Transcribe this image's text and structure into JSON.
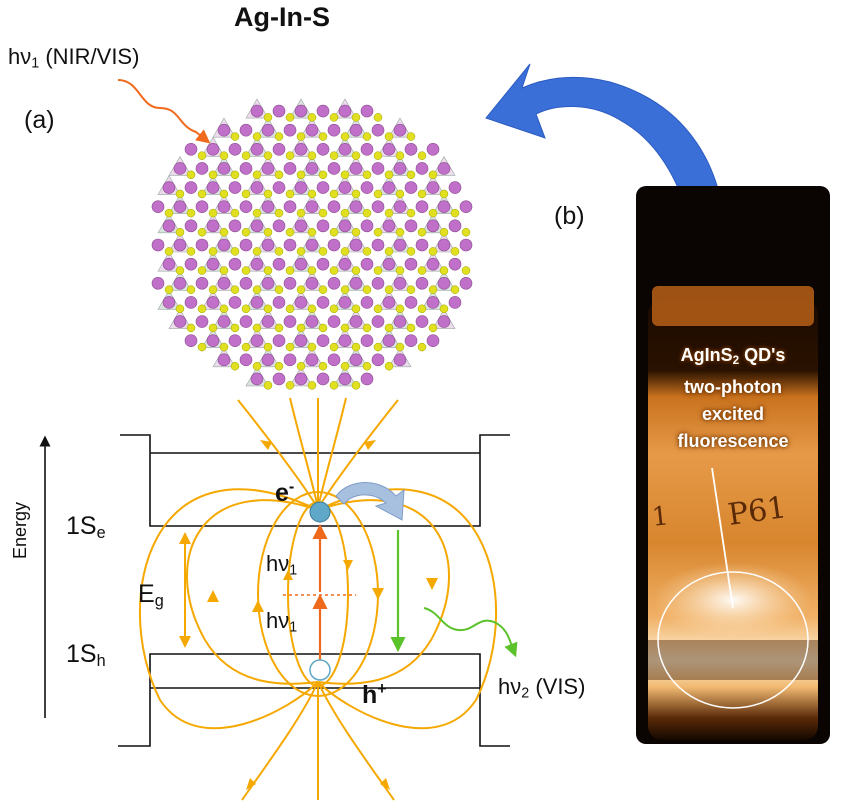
{
  "title": "Ag-In-S",
  "labels": {
    "photon_in_prefix": "hν",
    "photon_in_sub": "1",
    "photon_in_suffix": " (NIR/VIS)",
    "panel_a": "(a)",
    "panel_b": "(b)",
    "energy": "Energy",
    "level_e_main": "1S",
    "level_e_sub": "e",
    "level_h_main": "1S",
    "level_h_sub": "h",
    "gap_main": "E",
    "gap_sub": "g",
    "electron_main": "e",
    "electron_sup": "-",
    "hole_main": "h",
    "hole_sup": "+",
    "hv_prefix": "hν",
    "hv1_sub": "1",
    "hv2_sub": "1",
    "photon_out_prefix": "hν",
    "photon_out_sub": "2",
    "photon_out_suffix": " (VIS)"
  },
  "vial": {
    "line1_prefix": "AgInS",
    "line1_sub": "2",
    "line1_suffix": " QD's",
    "line2": "two-photon",
    "line3": "excited",
    "line4": "fluorescence",
    "label_left": "1",
    "label_right": "P61"
  },
  "colors": {
    "field_lines": "#f5a800",
    "excitation": "#f06a1e",
    "emission": "#5cc22a",
    "curved_arrow": "#3a6fd8",
    "indium": "#c070c8",
    "sulfur": "#e0e020",
    "silver": "#90a0a0",
    "electron": "#5fa8c8"
  }
}
